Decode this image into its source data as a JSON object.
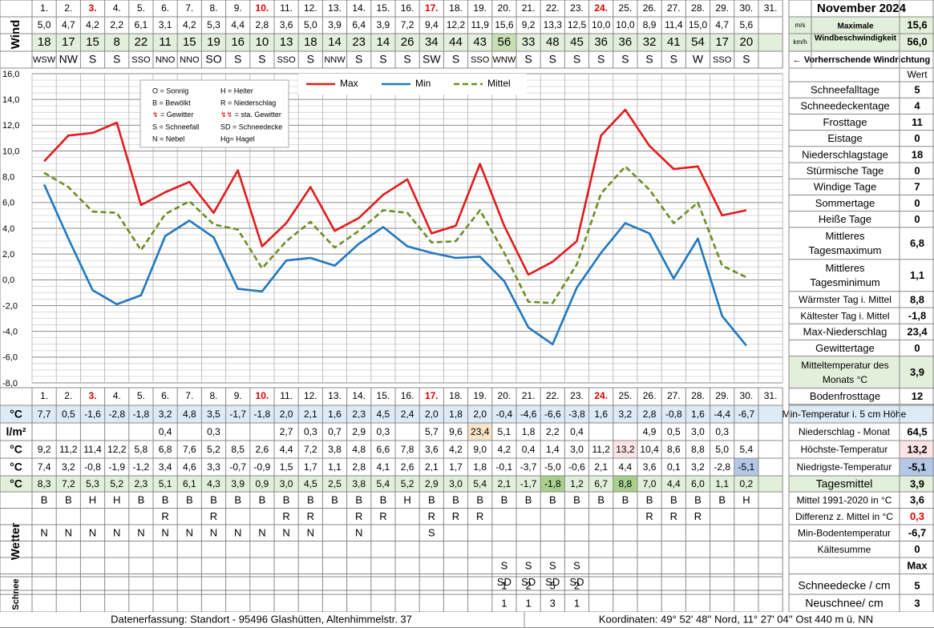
{
  "title": "November 2024",
  "days": [
    "1.",
    "2.",
    "3.",
    "4.",
    "5.",
    "6.",
    "7.",
    "8.",
    "9.",
    "10.",
    "11.",
    "12.",
    "13.",
    "14.",
    "15.",
    "16.",
    "17.",
    "18.",
    "19.",
    "20.",
    "21.",
    "22.",
    "23.",
    "24.",
    "25.",
    "26.",
    "27.",
    "28.",
    "29.",
    "30.",
    "31."
  ],
  "weekend_days": [
    2,
    9,
    16,
    23
  ],
  "colors": {
    "max": "#e31a1c",
    "min": "#1f78c1",
    "mean": "#6b8e23",
    "weekend": "#e00000",
    "grid": "#999999",
    "green_bg": "#e2efda",
    "blue_bg": "#ddebf7",
    "pink_bg": "#fce4e4"
  },
  "wind": {
    "label": "Wind",
    "ms": [
      "5,0",
      "4,7",
      "4,2",
      "2,2",
      "6,1",
      "3,1",
      "4,2",
      "5,3",
      "4,4",
      "2,8",
      "3,6",
      "5,0",
      "3,9",
      "6,4",
      "3,9",
      "7,2",
      "9,4",
      "12,2",
      "11,9",
      "15,6",
      "9,2",
      "13,3",
      "12,5",
      "10,0",
      "10,0",
      "8,9",
      "11,4",
      "15,0",
      "4,7",
      "5,6",
      ""
    ],
    "kmh": [
      "18",
      "17",
      "15",
      "8",
      "22",
      "11",
      "15",
      "19",
      "16",
      "10",
      "13",
      "18",
      "14",
      "23",
      "14",
      "26",
      "34",
      "44",
      "43",
      "56",
      "33",
      "48",
      "45",
      "36",
      "36",
      "32",
      "41",
      "54",
      "17",
      "20",
      ""
    ],
    "dir": [
      "WSW",
      "NW",
      "S",
      "S",
      "SSO",
      "NNO",
      "NNO",
      "SO",
      "S",
      "S",
      "SSO",
      "S",
      "NNW",
      "S",
      "S",
      "S",
      "SW",
      "S",
      "SSO",
      "WNW",
      "S",
      "S",
      "S",
      "S",
      "S",
      "S",
      "S",
      "W",
      "SSO",
      "S",
      ""
    ],
    "unit_ms": "m/s",
    "unit_kmh": "km/h",
    "max_label": "Maximale Windbeschwindigkeit",
    "max_ms": "15,6",
    "max_kmh": "56,0",
    "dir_label": "← Vorherrschende Windrichtung"
  },
  "legend": {
    "weather_codes": [
      "O = Sonnig",
      "H = Heiter",
      "B = Bewölkt",
      "R = Niederschlag",
      "= Gewitter",
      "= sta. Gewitter",
      "S = Schneefall",
      "SD = Schneedecke",
      "N = Nebel",
      "Hg= Hagel"
    ],
    "series": [
      "Max",
      "Min",
      "Mittel"
    ]
  },
  "chart_data": {
    "type": "line",
    "x": [
      1,
      2,
      3,
      4,
      5,
      6,
      7,
      8,
      9,
      10,
      11,
      12,
      13,
      14,
      15,
      16,
      17,
      18,
      19,
      20,
      21,
      22,
      23,
      24,
      25,
      26,
      27,
      28,
      29,
      30
    ],
    "ylim": [
      -8,
      16
    ],
    "yticks": [
      "16,0",
      "14,0",
      "12,0",
      "10,0",
      "8,0",
      "6,0",
      "4,0",
      "2,0",
      "0,0",
      "-2,0",
      "-4,0",
      "-6,0",
      "-8,0"
    ],
    "series": [
      {
        "name": "Max",
        "values": [
          9.2,
          11.2,
          11.4,
          12.2,
          5.8,
          6.8,
          7.6,
          5.2,
          8.5,
          2.6,
          4.4,
          7.2,
          3.8,
          4.8,
          6.6,
          7.8,
          3.6,
          4.2,
          9.0,
          4.2,
          0.4,
          1.4,
          3.0,
          11.2,
          13.2,
          10.4,
          8.6,
          8.8,
          5.0,
          5.4
        ]
      },
      {
        "name": "Min",
        "values": [
          7.4,
          3.2,
          -0.8,
          -1.9,
          -1.2,
          3.4,
          4.6,
          3.3,
          -0.7,
          -0.9,
          1.5,
          1.7,
          1.1,
          2.8,
          4.1,
          2.6,
          2.1,
          1.7,
          1.8,
          -0.1,
          -3.7,
          -5.0,
          -0.6,
          2.1,
          4.4,
          3.6,
          0.1,
          3.2,
          -2.8,
          -5.1
        ]
      },
      {
        "name": "Mittel",
        "values": [
          8.3,
          7.2,
          5.3,
          5.2,
          2.3,
          5.1,
          6.1,
          4.3,
          3.9,
          0.9,
          3.0,
          4.5,
          2.5,
          3.8,
          5.4,
          5.2,
          2.9,
          3.0,
          5.4,
          2.1,
          -1.7,
          -1.8,
          1.2,
          6.7,
          8.8,
          7.0,
          4.4,
          6.0,
          1.1,
          0.2
        ]
      }
    ]
  },
  "rows": {
    "min5": {
      "unit": "°C",
      "values": [
        "7,7",
        "0,5",
        "-1,6",
        "-2,8",
        "-1,8",
        "3,2",
        "4,8",
        "3,5",
        "-1,7",
        "-1,8",
        "2,0",
        "2,1",
        "1,6",
        "2,3",
        "4,5",
        "2,4",
        "2,0",
        "1,8",
        "2,0",
        "-0,4",
        "-4,6",
        "-6,6",
        "-3,8",
        "1,6",
        "3,2",
        "2,8",
        "-0,8",
        "1,6",
        "-4,4",
        "-6,7",
        ""
      ],
      "label": "Min-Temperatur i. 5 cm Höhe",
      "total": ""
    },
    "precip": {
      "unit": "l/m²",
      "values": [
        "",
        "",
        "",
        "",
        "",
        "0,4",
        "",
        "0,3",
        "",
        "",
        "2,7",
        "0,3",
        "0,7",
        "2,9",
        "0,3",
        "",
        "5,7",
        "9,6",
        "23,4",
        "5,1",
        "1,8",
        "2,2",
        "0,4",
        "",
        "",
        "4,9",
        "0,5",
        "3,0",
        "0,3",
        "",
        ""
      ],
      "label": "Niederschlag - Monat",
      "total": "64,5"
    },
    "max": {
      "unit": "°C",
      "values": [
        "9,2",
        "11,2",
        "11,4",
        "12,2",
        "5,8",
        "6,8",
        "7,6",
        "5,2",
        "8,5",
        "2,6",
        "4,4",
        "7,2",
        "3,8",
        "4,8",
        "6,6",
        "7,8",
        "3,6",
        "4,2",
        "9,0",
        "4,2",
        "0,4",
        "1,4",
        "3,0",
        "11,2",
        "13,2",
        "10,4",
        "8,6",
        "8,8",
        "5,0",
        "5,4",
        ""
      ],
      "label": "Höchste-Temperatur",
      "total": "13,2"
    },
    "min": {
      "unit": "°C",
      "values": [
        "7,4",
        "3,2",
        "-0,8",
        "-1,9",
        "-1,2",
        "3,4",
        "4,6",
        "3,3",
        "-0,7",
        "-0,9",
        "1,5",
        "1,7",
        "1,1",
        "2,8",
        "4,1",
        "2,6",
        "2,1",
        "1,7",
        "1,8",
        "-0,1",
        "-3,7",
        "-5,0",
        "-0,6",
        "2,1",
        "4,4",
        "3,6",
        "0,1",
        "3,2",
        "-2,8",
        "-5,1",
        ""
      ],
      "label": "Niedrigste-Temperatur",
      "total": "-5,1"
    },
    "mean": {
      "unit": "°C",
      "values": [
        "8,3",
        "7,2",
        "5,3",
        "5,2",
        "2,3",
        "5,1",
        "6,1",
        "4,3",
        "3,9",
        "0,9",
        "3,0",
        "4,5",
        "2,5",
        "3,8",
        "5,4",
        "5,2",
        "2,9",
        "3,0",
        "5,4",
        "2,1",
        "-1,7",
        "-1,8",
        "1,2",
        "6,7",
        "8,8",
        "7,0",
        "4,4",
        "6,0",
        "1,1",
        "0,2",
        ""
      ],
      "label": "Tagesmittel",
      "total": "3,9"
    }
  },
  "weather": {
    "label": "Wetter",
    "rows": [
      [
        "B",
        "B",
        "H",
        "H",
        "B",
        "B",
        "B",
        "B",
        "B",
        "B",
        "B",
        "B",
        "B",
        "B",
        "B",
        "H",
        "B",
        "B",
        "B",
        "B",
        "B",
        "B",
        "B",
        "B",
        "B",
        "B",
        "B",
        "B",
        "B",
        "H",
        ""
      ],
      [
        "",
        "",
        "",
        "",
        "",
        "R",
        "",
        "R",
        "",
        "",
        "R",
        "R",
        "",
        "R",
        "R",
        "",
        "R",
        "R",
        "R",
        "",
        "",
        "",
        "",
        "",
        "",
        "R",
        "R",
        "R",
        "",
        "",
        ""
      ],
      [
        "N",
        "N",
        "N",
        "N",
        "N",
        "N",
        "N",
        "N",
        "N",
        "N",
        "N",
        "N",
        "",
        "N",
        "",
        "",
        "S",
        "",
        "",
        "",
        "",
        "",
        "",
        "",
        "",
        "",
        "",
        "",
        "",
        "",
        ""
      ],
      [
        "",
        "",
        "",
        "",
        "",
        "",
        "",
        "",
        "",
        "",
        "",
        "",
        "",
        "",
        "",
        "",
        "",
        "",
        "",
        "",
        "",
        "",
        "",
        "",
        "",
        "",
        "",
        "",
        "",
        "",
        ""
      ],
      [
        "",
        "",
        "",
        "",
        "",
        "",
        "",
        "",
        "",
        "",
        "",
        "",
        "",
        "",
        "",
        "",
        "",
        "",
        "",
        "S",
        "S",
        "S",
        "S",
        "",
        "",
        "",
        "",
        "",
        "",
        "",
        ""
      ],
      [
        "",
        "",
        "",
        "",
        "",
        "",
        "",
        "",
        "",
        "",
        "",
        "",
        "",
        "",
        "",
        "",
        "",
        "",
        "",
        "SD",
        "SD",
        "SD",
        "SD",
        "",
        "",
        "",
        "",
        "",
        "",
        "",
        ""
      ]
    ],
    "side_rows": [
      {
        "label": "Mittel 1991-2020 in °C",
        "value": "3,6"
      },
      {
        "label": "Differenz z. Mittel in °C",
        "value": "0,3"
      },
      {
        "label": "Min-Bodentemperatur",
        "value": "-6,7"
      },
      {
        "label": "Kältesumme",
        "value": "0"
      },
      {
        "label": "",
        "value": "Max"
      }
    ]
  },
  "snow": {
    "label": "Schnee",
    "rows": [
      [
        "",
        "",
        "",
        "",
        "",
        "",
        "",
        "",
        "",
        "",
        "",
        "",
        "",
        "",
        "",
        "",
        "",
        "",
        "",
        "1",
        "2",
        "5",
        "2",
        "",
        "",
        "",
        "",
        "",
        "",
        "",
        ""
      ],
      [
        "",
        "",
        "",
        "",
        "",
        "",
        "",
        "",
        "",
        "",
        "",
        "",
        "",
        "",
        "",
        "",
        "",
        "",
        "",
        "1",
        "1",
        "3",
        "1",
        "",
        "",
        "",
        "",
        "",
        "",
        "",
        ""
      ]
    ],
    "side_rows": [
      {
        "label": "Schneedecke / cm",
        "value": "5"
      },
      {
        "label": "Neuschnee/ cm",
        "value": "3"
      }
    ]
  },
  "stats": {
    "header": "Wert",
    "rows": [
      {
        "label": "Schneefalltage",
        "value": "5"
      },
      {
        "label": "Schneedeckentage",
        "value": "4"
      },
      {
        "label": "Frosttage",
        "value": "11"
      },
      {
        "label": "Eistage",
        "value": "0"
      },
      {
        "label": "Niederschlagstage",
        "value": "18"
      },
      {
        "label": "Stürmische Tage",
        "value": "0"
      },
      {
        "label": "Windige Tage",
        "value": "7"
      },
      {
        "label": "Sommertage",
        "value": "0"
      },
      {
        "label": "Heiße Tage",
        "value": "0"
      },
      {
        "label": "Mittleres Tagesmaximum",
        "value": "6,8"
      },
      {
        "label": "Mittleres Tagesminimum",
        "value": "1,1"
      },
      {
        "label": "Wärmster Tag i. Mittel",
        "value": "8,8"
      },
      {
        "label": "Kältester Tag i. Mittel",
        "value": "-1,8"
      },
      {
        "label": "Max-Niederschlag",
        "value": "23,4"
      },
      {
        "label": "Gewittertage",
        "value": "0"
      },
      {
        "label": "Mitteltemperatur des Monats °C",
        "value": "3,9"
      },
      {
        "label": "Bodenfrosttage",
        "value": "12"
      }
    ]
  },
  "footer": {
    "left": "Datenerfassung:  Standort -  95496  Glashütten, Altenhimmelstr. 37",
    "right": "Koordinaten:  49° 52' 48'' Nord,   11° 27' 04'' Ost   440 m ü. NN"
  }
}
